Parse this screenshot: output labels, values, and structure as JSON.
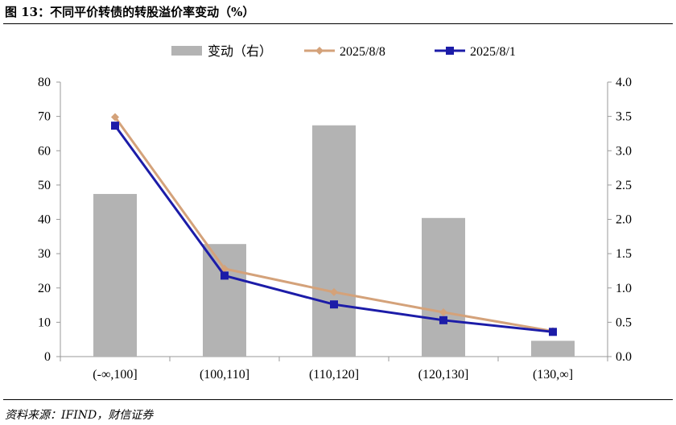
{
  "title": "图 13：不同平价转债的转股溢价率变动（%）",
  "source": "资料来源：IFIND，财信证券",
  "chart_data": {
    "type": "bar+line",
    "categories": [
      "(-∞,100]",
      "(100,110]",
      "(110,120]",
      "(120,130]",
      "(130,∞]"
    ],
    "series": [
      {
        "name": "变动（右）",
        "type": "bar",
        "axis": "right",
        "color": "#b3b3b3",
        "values": [
          2.37,
          1.64,
          3.37,
          2.02,
          0.23
        ]
      },
      {
        "name": "2025/8/8",
        "type": "line",
        "axis": "left",
        "marker": "diamond",
        "color": "#d4a27a",
        "values": [
          69.8,
          25.6,
          18.8,
          12.9,
          7.4
        ]
      },
      {
        "name": "2025/8/1",
        "type": "line",
        "axis": "left",
        "marker": "square",
        "color": "#1c1ca8",
        "values": [
          67.3,
          23.6,
          15.2,
          10.6,
          7.2
        ]
      }
    ],
    "ylim_left": [
      0,
      80
    ],
    "yticks_left": [
      "0",
      "10",
      "20",
      "30",
      "40",
      "50",
      "60",
      "70",
      "80"
    ],
    "ylim_right": [
      0,
      4
    ],
    "yticks_right": [
      "0.0",
      "0.5",
      "1.0",
      "1.5",
      "2.0",
      "2.5",
      "3.0",
      "3.5",
      "4.0"
    ],
    "legend": "top"
  }
}
